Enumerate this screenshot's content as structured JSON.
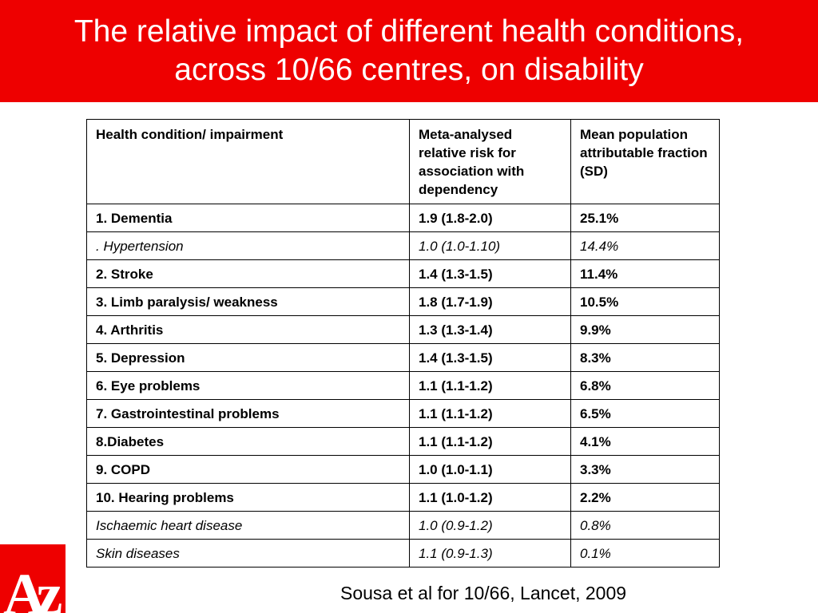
{
  "title": {
    "line1": "The relative impact of different health conditions,",
    "line2": "across 10/66 centres, on disability"
  },
  "table": {
    "headers": [
      "Health condition/ impairment",
      "Meta-analysed relative risk for association with dependency",
      "Mean population attributable fraction (SD)"
    ],
    "rows": [
      {
        "condition": "1. Dementia",
        "rr": "1.9 (1.8-2.0)",
        "paf": "25.1%",
        "italic": false
      },
      {
        "condition": ". Hypertension",
        "rr": "1.0 (1.0-1.10)",
        "paf": "14.4%",
        "italic": true
      },
      {
        "condition": "2. Stroke",
        "rr": "1.4 (1.3-1.5)",
        "paf": "11.4%",
        "italic": false
      },
      {
        "condition": "3. Limb paralysis/ weakness",
        "rr": "1.8 (1.7-1.9)",
        "paf": "10.5%",
        "italic": false
      },
      {
        "condition": "4. Arthritis",
        "rr": "1.3 (1.3-1.4)",
        "paf": "9.9%",
        "italic": false
      },
      {
        "condition": "5. Depression",
        "rr": "1.4 (1.3-1.5)",
        "paf": "8.3%",
        "italic": false
      },
      {
        "condition": "6. Eye problems",
        "rr": "1.1 (1.1-1.2)",
        "paf": "6.8%",
        "italic": false
      },
      {
        "condition": "7. Gastrointestinal problems",
        "rr": "1.1 (1.1-1.2)",
        "paf": "6.5%",
        "italic": false
      },
      {
        "condition": "8.Diabetes",
        "rr": "1.1 (1.1-1.2)",
        "paf": "4.1%",
        "italic": false
      },
      {
        "condition": "9. COPD",
        "rr": "1.0 (1.0-1.1)",
        "paf": "3.3%",
        "italic": false
      },
      {
        "condition": "10. Hearing problems",
        "rr": "1.1 (1.0-1.2)",
        "paf": "2.2%",
        "italic": false
      },
      {
        "condition": "Ischaemic heart disease",
        "rr": "1.0 (0.9-1.2)",
        "paf": "0.8%",
        "italic": true
      },
      {
        "condition": "Skin diseases",
        "rr": "1.1 (0.9-1.3)",
        "paf": "0.1%",
        "italic": true
      }
    ]
  },
  "citation": "Sousa et al for 10/66, Lancet, 2009",
  "logo": {
    "text": "Az",
    "color": "#ee0000"
  },
  "colors": {
    "accent": "#ee0000",
    "text": "#000000"
  }
}
